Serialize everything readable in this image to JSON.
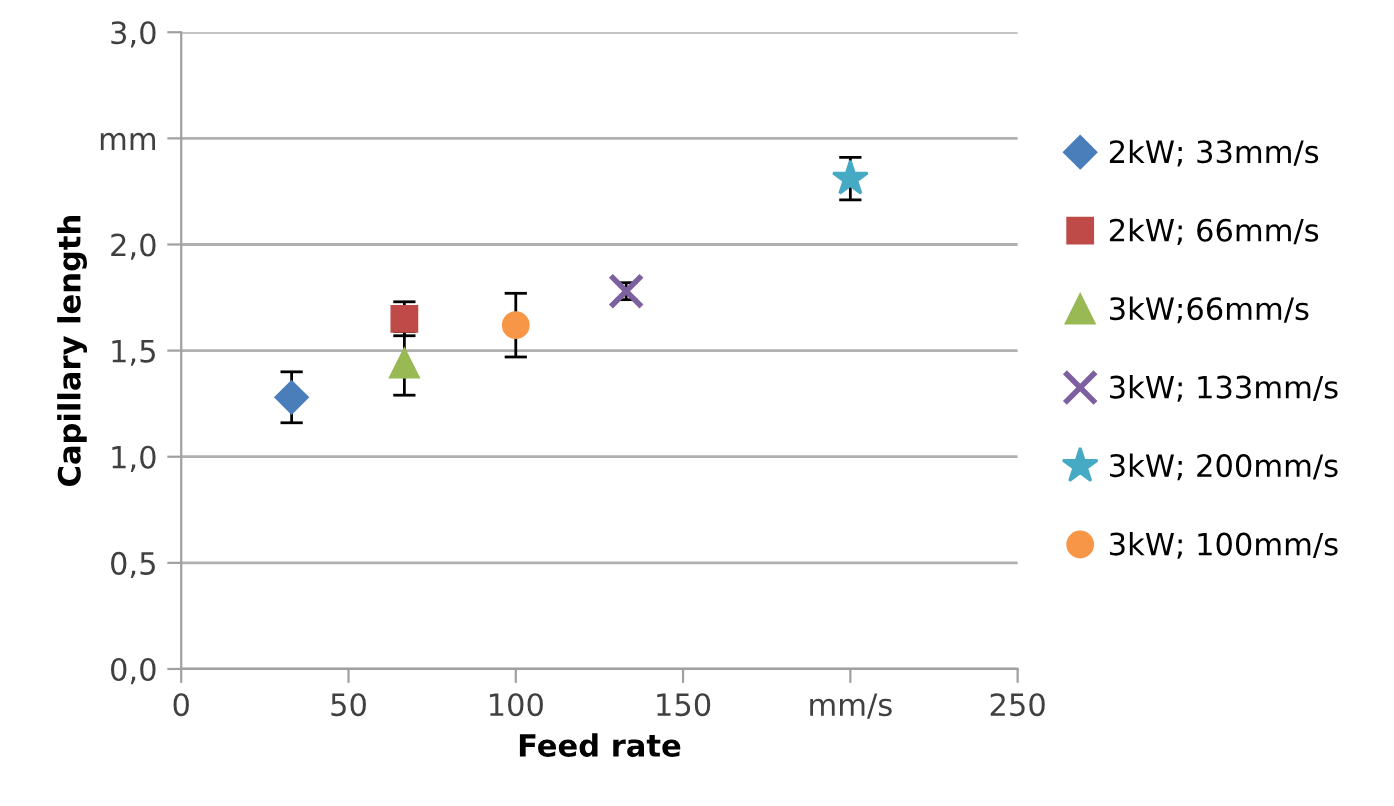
{
  "chart_data": {
    "type": "scatter",
    "xlabel": "Feed rate",
    "ylabel": "Capillary length",
    "xlim": [
      0,
      250
    ],
    "ylim": [
      0,
      3
    ],
    "xticks": [
      0,
      50,
      100,
      150,
      {
        "value": 200,
        "label": "mm/s"
      },
      250
    ],
    "yticks": [
      {
        "value": 0,
        "label": "0,0"
      },
      {
        "value": 0.5,
        "label": "0,5"
      },
      {
        "value": 1,
        "label": "1,0"
      },
      {
        "value": 1.5,
        "label": "1,5"
      },
      {
        "value": 2,
        "label": "2,0"
      },
      {
        "value": 2.5,
        "label": "mm"
      },
      {
        "value": 3,
        "label": "3,0"
      }
    ],
    "grid": "y",
    "legend": "right",
    "series": [
      {
        "name": "2kW; 33mm/s",
        "color": "#4a7ebb",
        "marker": "diamond",
        "x": [
          33
        ],
        "values": [
          1.28
        ],
        "errors": [
          0.12
        ]
      },
      {
        "name": "2kW; 66mm/s",
        "color": "#be4b48",
        "marker": "square",
        "x": [
          66.7
        ],
        "values": [
          1.65
        ],
        "errors": [
          0.08
        ]
      },
      {
        "name": "3kW;66mm/s",
        "color": "#98b954",
        "marker": "triangle",
        "x": [
          66.7
        ],
        "values": [
          1.44
        ],
        "errors": [
          0.15
        ]
      },
      {
        "name": "3kW; 133mm/s",
        "color": "#7d60a0",
        "marker": "cross",
        "x": [
          133
        ],
        "values": [
          1.78
        ],
        "errors": [
          0.04
        ]
      },
      {
        "name": "3kW; 200mm/s",
        "color": "#46aac5",
        "marker": "star",
        "x": [
          200
        ],
        "values": [
          2.31
        ],
        "errors": [
          0.1
        ]
      },
      {
        "name": "3kW; 100mm/s",
        "color": "#f79646",
        "marker": "circle",
        "x": [
          100
        ],
        "values": [
          1.62
        ],
        "errors": [
          0.15
        ]
      }
    ]
  }
}
